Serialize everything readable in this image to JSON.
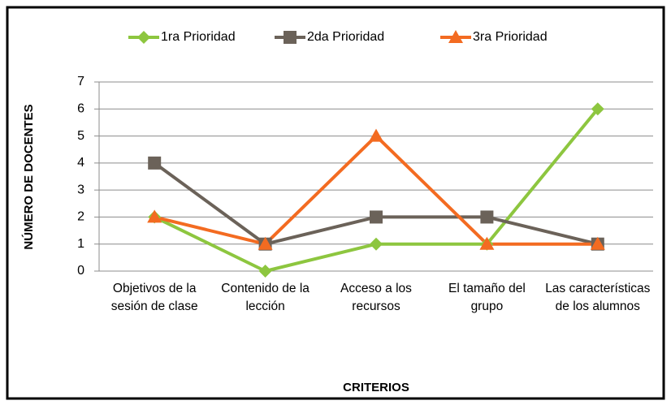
{
  "chart_data": {
    "type": "line",
    "x_label": "CRITERIOS",
    "y_label": "NÚMERO DE DOCENTES",
    "categories": [
      "Objetivos de la sesión de clase",
      "Contenido de la lección",
      "Acceso a los recursos",
      "El tamaño del grupo",
      "Las características de los alumnos"
    ],
    "series": [
      {
        "name": "1ra Prioridad",
        "color": "#8dc63f",
        "marker": "diamond",
        "values": [
          2,
          0,
          1,
          1,
          6
        ]
      },
      {
        "name": "2da Prioridad",
        "color": "#6b6259",
        "marker": "square",
        "values": [
          4,
          1,
          2,
          2,
          1
        ]
      },
      {
        "name": "3ra Prioridad",
        "color": "#f36b21",
        "marker": "triangle",
        "values": [
          2,
          1,
          5,
          1,
          1
        ]
      }
    ],
    "ylim": [
      0,
      7
    ],
    "yticks": [
      0,
      1,
      2,
      3,
      4,
      5,
      6,
      7
    ],
    "grid": true,
    "legend": "top"
  }
}
